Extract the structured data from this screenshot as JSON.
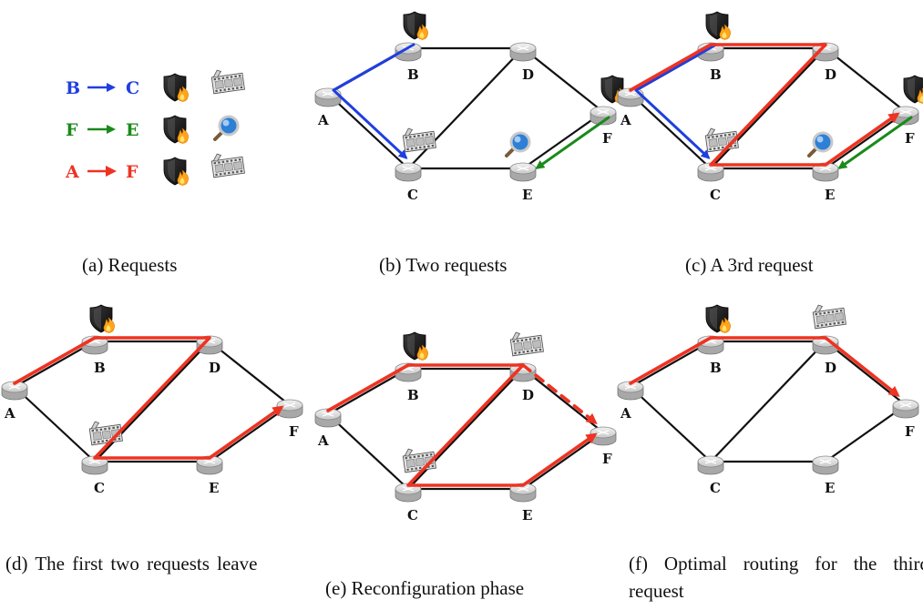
{
  "colors": {
    "blue": "#1f3fe0",
    "green": "#1a8a1a",
    "red": "#ee3322",
    "link": "#111111",
    "router_top": "#dcdcdc",
    "router_side": "#a8a8a8"
  },
  "icons": {
    "firewall": "shield-flame-icon",
    "video": "film-strip-icon",
    "search": "magnifier-icon"
  },
  "legend": [
    {
      "src": "B",
      "dst": "C",
      "color": "blue",
      "icons": [
        "firewall",
        "video"
      ]
    },
    {
      "src": "F",
      "dst": "E",
      "color": "green",
      "icons": [
        "firewall",
        "search"
      ]
    },
    {
      "src": "A",
      "dst": "F",
      "color": "red",
      "icons": [
        "firewall",
        "video"
      ]
    }
  ],
  "topology": {
    "nodes": [
      "A",
      "B",
      "C",
      "D",
      "E",
      "F"
    ],
    "links": [
      [
        "A",
        "B"
      ],
      [
        "B",
        "D"
      ],
      [
        "D",
        "F"
      ],
      [
        "A",
        "C"
      ],
      [
        "C",
        "E"
      ],
      [
        "E",
        "F"
      ],
      [
        "C",
        "D"
      ]
    ]
  },
  "panels": [
    {
      "id": "b",
      "caption": "(b) Two requests",
      "services": [
        {
          "node": "B",
          "icon": "firewall"
        },
        {
          "node": "C",
          "icon": "video"
        },
        {
          "node": "F",
          "icon": "firewall"
        },
        {
          "node": "E",
          "icon": "search"
        }
      ],
      "paths": [
        {
          "color": "blue",
          "nodes": [
            "B",
            "A",
            "C"
          ],
          "arrow": true
        },
        {
          "color": "green",
          "nodes": [
            "F",
            "E"
          ],
          "arrow": true
        }
      ]
    },
    {
      "id": "c",
      "caption": "(c) A 3rd request",
      "services": [
        {
          "node": "B",
          "icon": "firewall"
        },
        {
          "node": "C",
          "icon": "video"
        },
        {
          "node": "F",
          "icon": "firewall"
        },
        {
          "node": "E",
          "icon": "search"
        }
      ],
      "paths": [
        {
          "color": "blue",
          "nodes": [
            "B",
            "A",
            "C"
          ],
          "arrow": true
        },
        {
          "color": "green",
          "nodes": [
            "F",
            "E"
          ],
          "arrow": true
        },
        {
          "color": "red",
          "nodes": [
            "A",
            "B",
            "D",
            "C",
            "E",
            "F"
          ],
          "arrow": true
        }
      ]
    },
    {
      "id": "d",
      "caption": "(d) The first two requests leave",
      "services": [
        {
          "node": "B",
          "icon": "firewall"
        },
        {
          "node": "C",
          "icon": "video"
        }
      ],
      "paths": [
        {
          "color": "red",
          "nodes": [
            "A",
            "B",
            "D",
            "C",
            "E",
            "F"
          ],
          "arrow": true
        }
      ]
    },
    {
      "id": "e",
      "caption": "(e) Reconfiguration phase",
      "services": [
        {
          "node": "B",
          "icon": "firewall"
        },
        {
          "node": "C",
          "icon": "video"
        },
        {
          "node": "D",
          "icon": "video"
        }
      ],
      "paths": [
        {
          "color": "red",
          "nodes": [
            "A",
            "B",
            "D",
            "C",
            "E",
            "F"
          ],
          "arrow": true
        },
        {
          "color": "red",
          "nodes": [
            "D",
            "F"
          ],
          "arrow": true,
          "dashed": true
        }
      ]
    },
    {
      "id": "f",
      "caption": "(f) Optimal routing for the third request",
      "services": [
        {
          "node": "B",
          "icon": "firewall"
        },
        {
          "node": "D",
          "icon": "video"
        }
      ],
      "paths": [
        {
          "color": "red",
          "nodes": [
            "A",
            "B",
            "D",
            "F"
          ],
          "arrow": true
        }
      ]
    }
  ],
  "caption_a": "(a) Requests"
}
